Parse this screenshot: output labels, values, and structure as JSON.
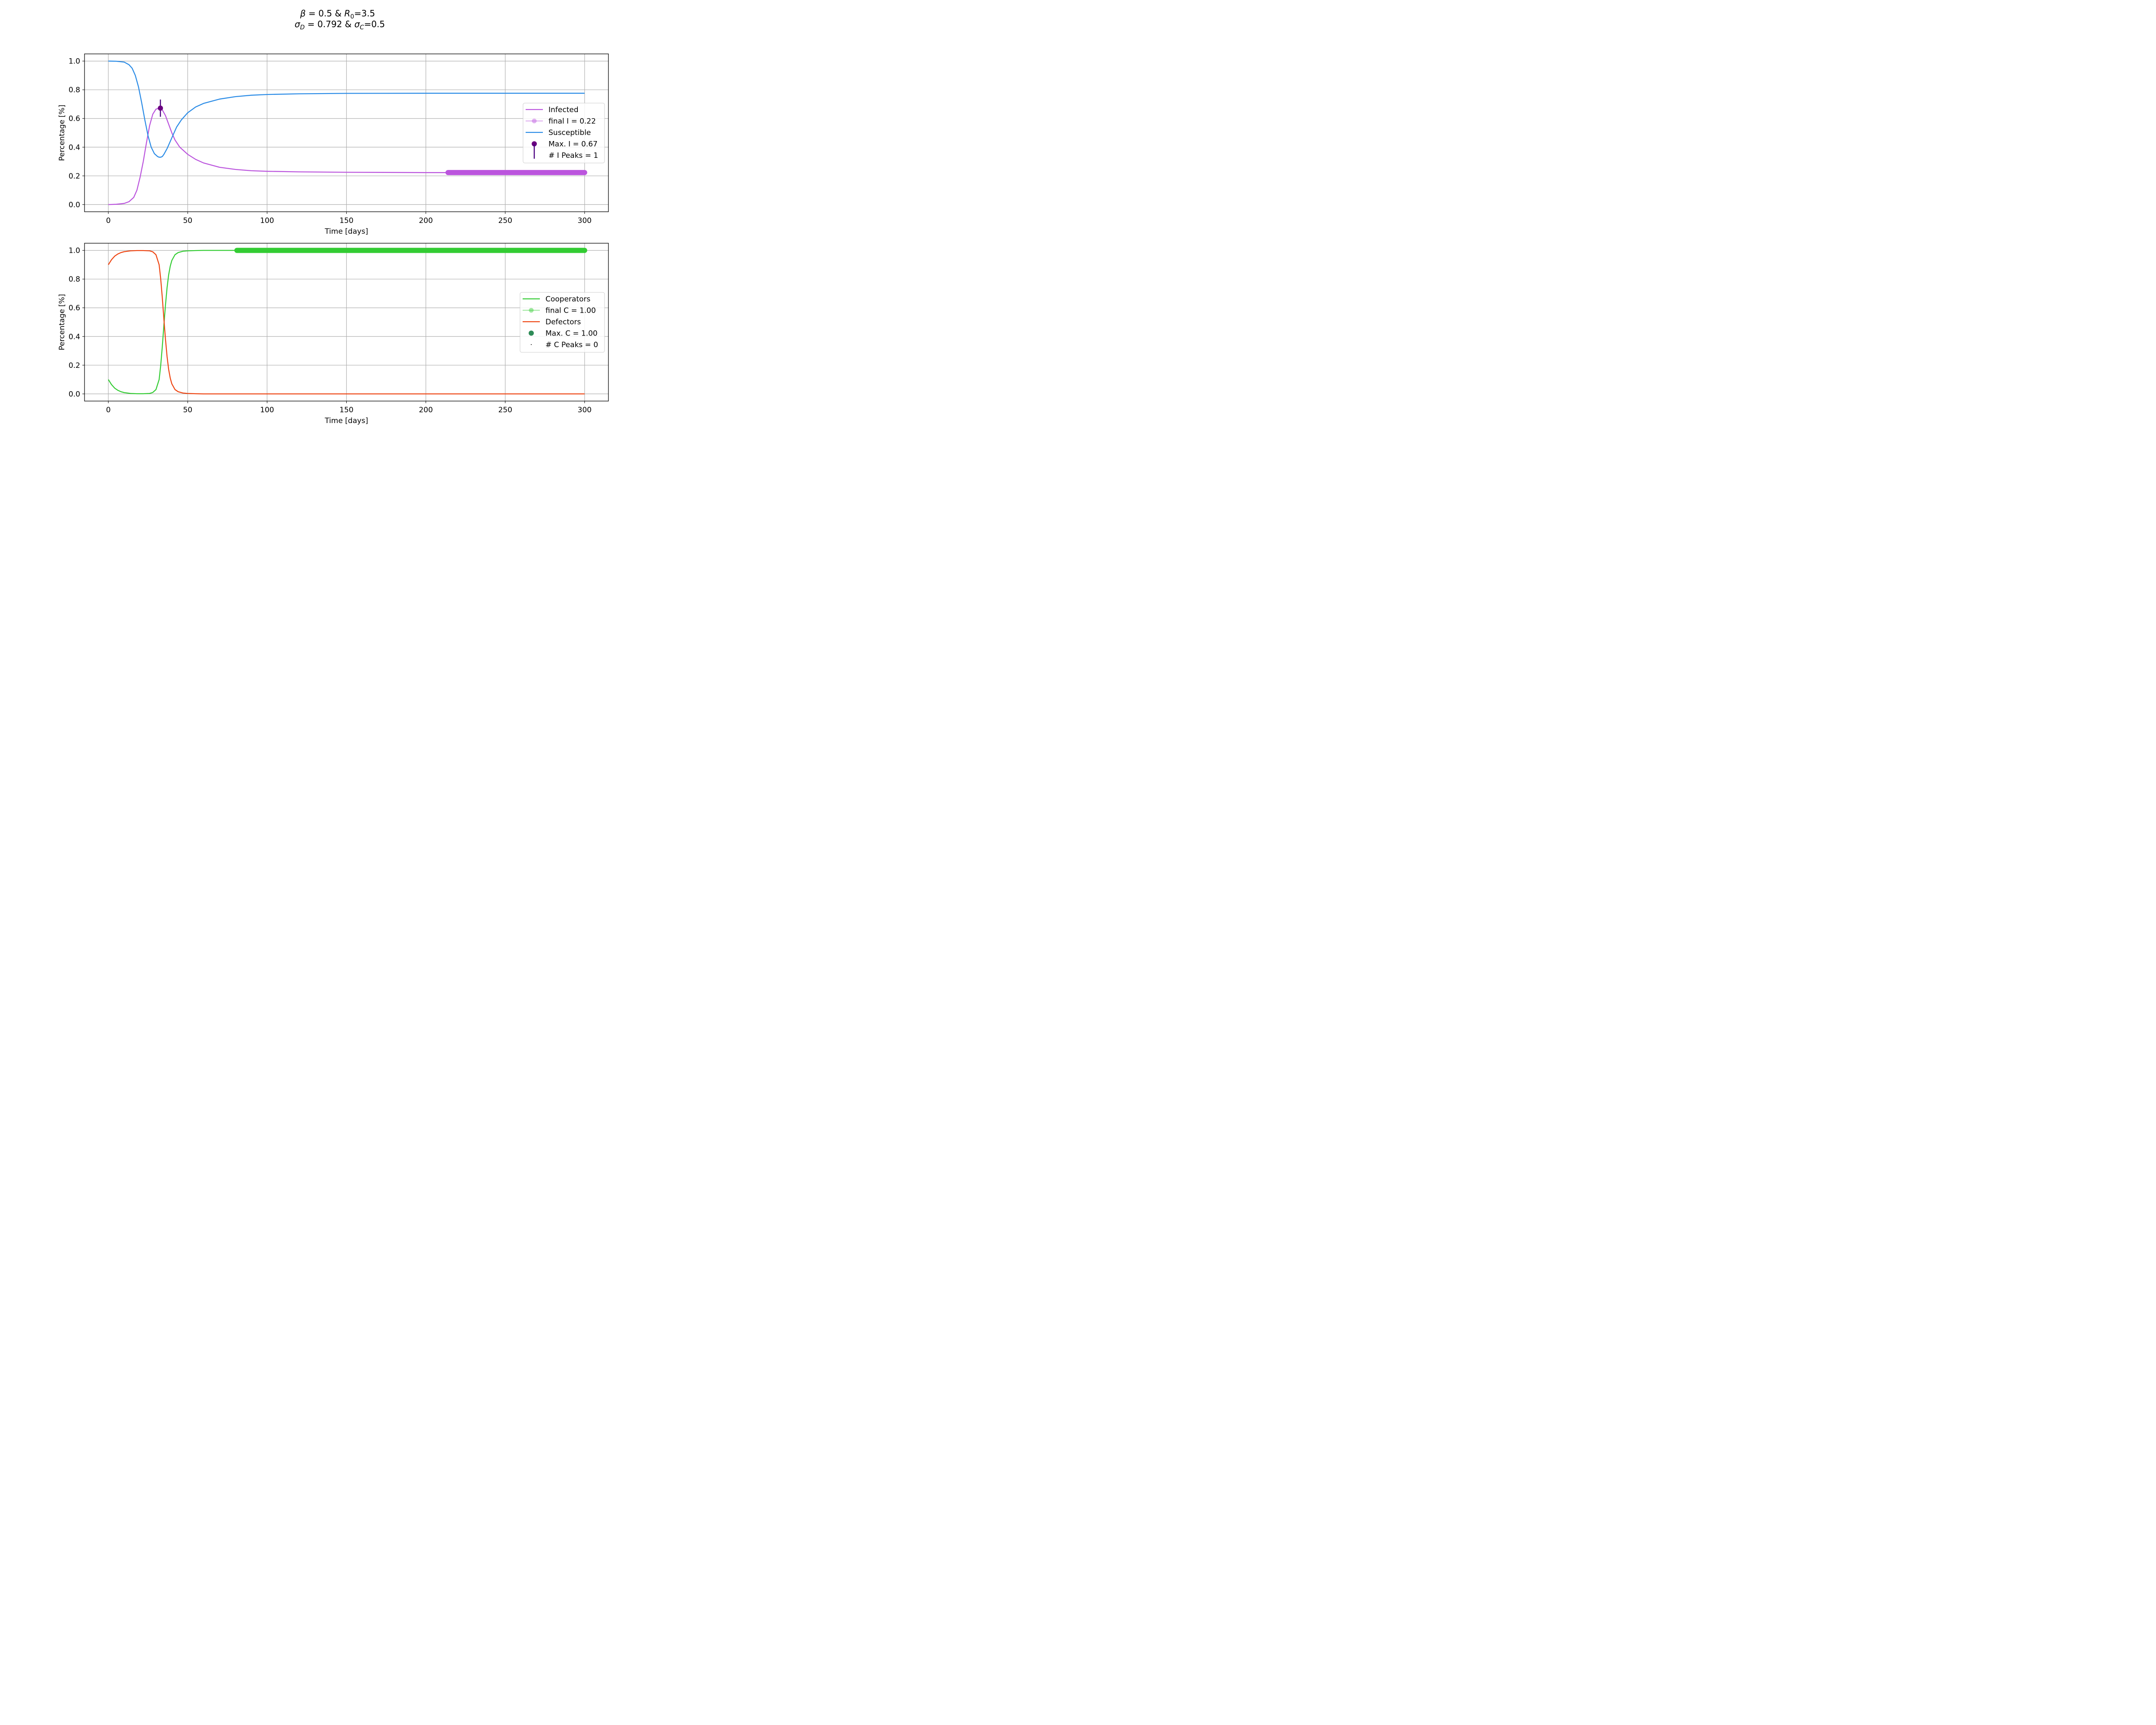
{
  "title": {
    "line1": {
      "beta_sym": "β",
      "beta_rest": " = 0.5 & ",
      "r_sym": "R",
      "r_sub": "0",
      "r_rest": "=3.5"
    },
    "line2": {
      "sd_sym": "σ",
      "sd_sub": "D",
      "sd_rest": " = 0.792 & ",
      "sc_sym": "σ",
      "sc_sub": "C",
      "sc_rest": "=0.5"
    }
  },
  "chart_data": [
    {
      "type": "line",
      "xlabel": "Time [days]",
      "ylabel": "Percentage [%]",
      "xlim": [
        -15,
        315
      ],
      "ylim": [
        -0.05,
        1.05
      ],
      "xticks": [
        0,
        50,
        100,
        150,
        200,
        250,
        300
      ],
      "yticks": [
        0.0,
        0.2,
        0.4,
        0.6,
        0.8,
        1.0
      ],
      "grid": true,
      "legend_position": "center-right",
      "series": [
        {
          "name": "Infected",
          "color": "#bb55dd",
          "x": [
            0,
            5,
            10,
            13,
            16,
            18,
            20,
            22,
            24,
            26,
            28,
            30,
            32,
            33,
            34,
            36,
            38,
            40,
            42,
            45,
            50,
            55,
            60,
            70,
            80,
            90,
            100,
            120,
            150,
            200,
            250,
            300
          ],
          "y": [
            0.0,
            0.002,
            0.008,
            0.02,
            0.05,
            0.1,
            0.19,
            0.3,
            0.43,
            0.55,
            0.63,
            0.665,
            0.672,
            0.67,
            0.66,
            0.62,
            0.56,
            0.5,
            0.45,
            0.4,
            0.35,
            0.315,
            0.29,
            0.26,
            0.245,
            0.236,
            0.232,
            0.228,
            0.225,
            0.223,
            0.223,
            0.223
          ]
        },
        {
          "name": "Susceptible",
          "color": "#2a8be6",
          "x": [
            0,
            5,
            10,
            13,
            15,
            17,
            19,
            21,
            23,
            25,
            27,
            29,
            31,
            32,
            33,
            34,
            35,
            37,
            39,
            41,
            43,
            46,
            50,
            55,
            60,
            70,
            80,
            90,
            100,
            120,
            150,
            200,
            250,
            300
          ],
          "y": [
            1.0,
            0.999,
            0.993,
            0.975,
            0.95,
            0.9,
            0.82,
            0.71,
            0.59,
            0.48,
            0.4,
            0.355,
            0.335,
            0.33,
            0.33,
            0.335,
            0.35,
            0.39,
            0.44,
            0.49,
            0.54,
            0.59,
            0.64,
            0.68,
            0.705,
            0.735,
            0.752,
            0.762,
            0.767,
            0.772,
            0.775,
            0.776,
            0.776,
            0.776
          ]
        }
      ],
      "final_segment": {
        "label": "final I = 0.22",
        "x_start": 214,
        "x_end": 300,
        "y": 0.223,
        "color": "#bb55dd"
      },
      "max_marker": {
        "label": "Max. I = 0.67",
        "x": 32.8,
        "y": 0.672,
        "err": 0.06,
        "color": "#6b0080",
        "errcolor": "#4a0080"
      },
      "peaks_label": "# I Peaks = 1",
      "legend": [
        "Infected",
        "final I = 0.22",
        "Susceptible",
        "Max. I = 0.67",
        "# I Peaks = 1"
      ]
    },
    {
      "type": "line",
      "xlabel": "Time [days]",
      "ylabel": "Percentage [%]",
      "xlim": [
        -15,
        315
      ],
      "ylim": [
        -0.05,
        1.05
      ],
      "xticks": [
        0,
        50,
        100,
        150,
        200,
        250,
        300
      ],
      "yticks": [
        0.0,
        0.2,
        0.4,
        0.6,
        0.8,
        1.0
      ],
      "grid": true,
      "legend_position": "center-right",
      "series": [
        {
          "name": "Cooperators",
          "color": "#33cc33",
          "x": [
            0,
            2,
            4,
            6,
            8,
            10,
            14,
            18,
            22,
            26,
            28,
            30,
            32,
            33,
            34,
            35,
            36,
            37,
            38,
            39,
            40,
            42,
            44,
            47,
            50,
            55,
            60,
            80,
            300
          ],
          "y": [
            0.1,
            0.065,
            0.04,
            0.025,
            0.015,
            0.009,
            0.003,
            0.001,
            0.001,
            0.003,
            0.01,
            0.03,
            0.1,
            0.2,
            0.33,
            0.48,
            0.62,
            0.74,
            0.83,
            0.89,
            0.93,
            0.97,
            0.985,
            0.994,
            0.997,
            0.999,
            1.0,
            1.0,
            1.0
          ]
        },
        {
          "name": "Defectors",
          "color": "#ee4411",
          "x": [
            0,
            2,
            4,
            6,
            8,
            10,
            14,
            18,
            22,
            26,
            28,
            30,
            32,
            33,
            34,
            35,
            36,
            37,
            38,
            39,
            40,
            42,
            44,
            47,
            50,
            55,
            60,
            80,
            300
          ],
          "y": [
            0.9,
            0.935,
            0.96,
            0.975,
            0.985,
            0.991,
            0.997,
            0.999,
            0.999,
            0.997,
            0.99,
            0.97,
            0.9,
            0.8,
            0.67,
            0.52,
            0.38,
            0.26,
            0.17,
            0.11,
            0.07,
            0.03,
            0.015,
            0.006,
            0.003,
            0.001,
            0.0,
            0.0,
            0.0
          ]
        }
      ],
      "final_segment": {
        "label": "final C = 1.00",
        "x_start": 81,
        "x_end": 300,
        "y": 1.0,
        "color": "#33cc33"
      },
      "max_marker": {
        "label": "Max. C = 1.00",
        "color": "#2e8b57"
      },
      "peaks_label": "# C Peaks = 0",
      "legend": [
        "Cooperators",
        "final C = 1.00",
        "Defectors",
        "Max. C = 1.00",
        "# C Peaks = 0"
      ]
    }
  ]
}
